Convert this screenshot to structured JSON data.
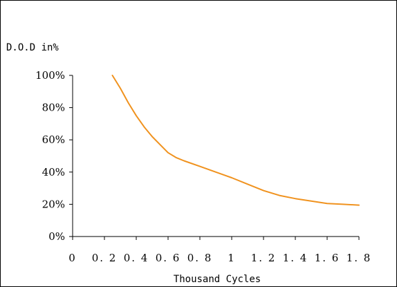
{
  "chart_data": {
    "type": "line",
    "title": "",
    "xlabel": "Thousand Cycles",
    "ylabel": "D.O.D in%",
    "xlim": [
      0,
      1.8
    ],
    "ylim": [
      0,
      100
    ],
    "x_ticks": [
      "0",
      "0.2",
      "0.4",
      "0.6",
      "0.8",
      "1",
      "1.2",
      "1.4",
      "1.6",
      "1.8"
    ],
    "y_ticks": [
      "0%",
      "20%",
      "40%",
      "60%",
      "80%",
      "100%"
    ],
    "grid": false,
    "legend": "none",
    "series": [
      {
        "color": "#f0921e",
        "x": [
          0.25,
          0.3,
          0.35,
          0.4,
          0.45,
          0.5,
          0.55,
          0.6,
          0.65,
          0.7,
          0.8,
          0.9,
          1.0,
          1.1,
          1.2,
          1.3,
          1.4,
          1.5,
          1.6,
          1.7,
          1.8
        ],
        "y": [
          100,
          92,
          83,
          75,
          68,
          62,
          57,
          52,
          49,
          47,
          43.5,
          40,
          36.5,
          32.5,
          28.5,
          25.5,
          23.5,
          22,
          20.5,
          20,
          19.5
        ]
      }
    ]
  }
}
